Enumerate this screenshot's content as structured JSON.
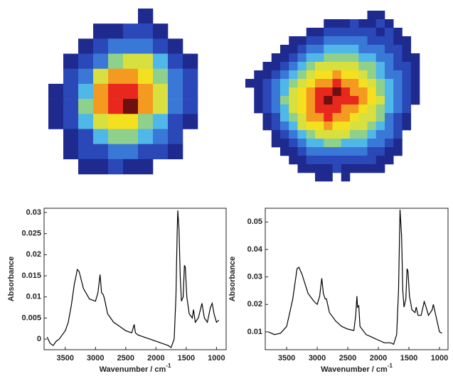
{
  "chart_data": [
    {
      "type": "heatmap",
      "colormap": [
        "#1f2a8f",
        "#2a48b8",
        "#3a78d8",
        "#4fb8e8",
        "#8fd08a",
        "#d8e040",
        "#f5e020",
        "#f49a20",
        "#e8281e",
        "#6e1010"
      ],
      "values": [
        [
          null,
          null,
          null,
          null,
          null,
          null,
          1,
          null,
          null,
          null
        ],
        [
          null,
          null,
          null,
          1,
          1,
          2,
          2,
          1,
          null,
          null
        ],
        [
          null,
          null,
          1,
          2,
          3,
          3,
          3,
          2,
          1,
          null
        ],
        [
          null,
          1,
          2,
          3,
          5,
          6,
          6,
          4,
          2,
          1
        ],
        [
          null,
          2,
          3,
          6,
          8,
          8,
          7,
          5,
          3,
          2
        ],
        [
          1,
          2,
          4,
          8,
          9,
          9,
          8,
          6,
          3,
          2
        ],
        [
          1,
          2,
          5,
          8,
          9,
          10,
          8,
          6,
          3,
          2
        ],
        [
          1,
          2,
          4,
          6,
          7,
          7,
          5,
          4,
          2,
          1
        ],
        [
          null,
          1,
          2,
          4,
          5,
          5,
          4,
          3,
          2,
          null
        ],
        [
          null,
          1,
          2,
          2,
          3,
          3,
          2,
          2,
          1,
          null
        ],
        [
          null,
          null,
          1,
          1,
          2,
          1,
          1,
          null,
          null,
          null
        ]
      ]
    },
    {
      "type": "heatmap",
      "colormap": [
        "#1f2a8f",
        "#2a48b8",
        "#3a78d8",
        "#4fb8e8",
        "#8fd08a",
        "#d8e040",
        "#f5e020",
        "#f49a20",
        "#e8281e",
        "#6e1010"
      ],
      "values": [
        [
          null,
          null,
          null,
          null,
          null,
          null,
          null,
          null,
          null,
          null,
          null,
          null,
          null,
          null,
          1,
          1,
          null,
          null,
          null,
          null
        ],
        [
          null,
          null,
          null,
          null,
          null,
          null,
          null,
          null,
          null,
          1,
          1,
          1,
          2,
          1,
          1,
          2,
          1,
          null,
          null,
          null
        ],
        [
          null,
          null,
          null,
          null,
          null,
          null,
          null,
          1,
          1,
          2,
          2,
          2,
          2,
          2,
          2,
          1,
          2,
          1,
          null,
          null
        ],
        [
          null,
          null,
          null,
          null,
          null,
          1,
          1,
          2,
          2,
          3,
          3,
          3,
          3,
          3,
          2,
          2,
          2,
          1,
          1,
          null
        ],
        [
          null,
          null,
          null,
          null,
          1,
          1,
          2,
          3,
          3,
          4,
          4,
          4,
          4,
          3,
          3,
          3,
          2,
          2,
          1,
          null
        ],
        [
          null,
          null,
          null,
          1,
          1,
          2,
          3,
          4,
          4,
          5,
          5,
          5,
          5,
          4,
          4,
          3,
          3,
          2,
          1,
          1
        ],
        [
          null,
          null,
          1,
          1,
          2,
          3,
          4,
          5,
          6,
          6,
          6,
          6,
          6,
          5,
          5,
          4,
          3,
          2,
          2,
          1
        ],
        [
          null,
          1,
          1,
          2,
          3,
          4,
          5,
          6,
          7,
          7,
          8,
          7,
          7,
          6,
          5,
          4,
          3,
          3,
          2,
          1
        ],
        [
          1,
          1,
          2,
          3,
          4,
          5,
          6,
          7,
          8,
          8,
          9,
          8,
          8,
          7,
          6,
          5,
          4,
          3,
          2,
          1
        ],
        [
          null,
          1,
          2,
          3,
          4,
          6,
          7,
          8,
          9,
          9,
          10,
          9,
          8,
          8,
          7,
          5,
          4,
          3,
          2,
          1
        ],
        [
          null,
          1,
          2,
          3,
          5,
          6,
          7,
          8,
          9,
          10,
          9,
          9,
          9,
          8,
          7,
          6,
          4,
          3,
          2,
          1
        ],
        [
          null,
          1,
          2,
          3,
          4,
          6,
          7,
          8,
          9,
          9,
          9,
          8,
          8,
          7,
          6,
          5,
          4,
          3,
          2,
          null
        ],
        [
          null,
          null,
          1,
          2,
          4,
          5,
          6,
          8,
          8,
          9,
          8,
          8,
          7,
          6,
          6,
          5,
          3,
          2,
          1,
          null
        ],
        [
          null,
          null,
          1,
          2,
          3,
          4,
          6,
          7,
          7,
          8,
          7,
          7,
          6,
          6,
          5,
          4,
          3,
          2,
          1,
          null
        ],
        [
          null,
          null,
          null,
          1,
          2,
          3,
          4,
          5,
          6,
          6,
          6,
          6,
          5,
          5,
          4,
          3,
          3,
          2,
          null,
          null
        ],
        [
          null,
          null,
          null,
          1,
          1,
          2,
          3,
          4,
          4,
          5,
          5,
          4,
          4,
          4,
          3,
          3,
          2,
          1,
          null,
          null
        ],
        [
          null,
          null,
          null,
          null,
          1,
          1,
          2,
          3,
          3,
          3,
          3,
          3,
          3,
          3,
          2,
          2,
          1,
          1,
          null,
          null
        ],
        [
          null,
          null,
          null,
          null,
          null,
          1,
          1,
          2,
          2,
          2,
          2,
          2,
          2,
          2,
          2,
          1,
          1,
          null,
          null,
          null
        ],
        [
          null,
          null,
          null,
          null,
          null,
          null,
          1,
          1,
          1,
          1,
          2,
          1,
          1,
          1,
          1,
          1,
          null,
          null,
          null,
          null
        ],
        [
          null,
          null,
          null,
          null,
          null,
          null,
          null,
          null,
          1,
          1,
          null,
          1,
          null,
          null,
          null,
          null,
          null,
          null,
          null,
          null
        ]
      ]
    },
    {
      "type": "line",
      "color": "#000000",
      "x_label": "Wavenumber / cm",
      "x_label_superscript": "-1",
      "y_label": "Absorbance",
      "xlim": [
        3850,
        840
      ],
      "xticks": [
        3500,
        3000,
        2500,
        2000,
        1500,
        1000
      ],
      "ylim": [
        -0.0025,
        0.031
      ],
      "yticks": [
        0,
        0.005,
        0.01,
        0.015,
        0.02,
        0.025,
        0.03
      ],
      "x": [
        3800,
        3750,
        3700,
        3650,
        3600,
        3550,
        3500,
        3450,
        3400,
        3350,
        3300,
        3270,
        3200,
        3100,
        3000,
        2960,
        2925,
        2900,
        2870,
        2850,
        2800,
        2700,
        2600,
        2500,
        2400,
        2360,
        2340,
        2300,
        2200,
        2100,
        2000,
        1900,
        1800,
        1750,
        1700,
        1670,
        1650,
        1640,
        1620,
        1600,
        1580,
        1550,
        1530,
        1515,
        1490,
        1450,
        1400,
        1380,
        1350,
        1300,
        1240,
        1200,
        1150,
        1100,
        1070,
        1040,
        1000,
        960
      ],
      "values": [
        0.0005,
        -0.001,
        -0.0015,
        -0.0005,
        0,
        0.001,
        0.002,
        0.004,
        0.008,
        0.013,
        0.0165,
        0.016,
        0.012,
        0.0095,
        0.009,
        0.011,
        0.0153,
        0.011,
        0.0105,
        0.0095,
        0.006,
        0.004,
        0.003,
        0.002,
        0.0015,
        0.0035,
        0.0015,
        0.001,
        0.0005,
        0,
        -0.0005,
        -0.001,
        -0.0015,
        -0.002,
        0,
        0.01,
        0.025,
        0.0305,
        0.026,
        0.015,
        0.009,
        0.01,
        0.0175,
        0.017,
        0.01,
        0.006,
        0.005,
        0.007,
        0.004,
        0.005,
        0.0085,
        0.005,
        0.004,
        0.0075,
        0.0085,
        0.006,
        0.004,
        0.0045
      ]
    },
    {
      "type": "line",
      "color": "#000000",
      "x_label": "Wavenumber / cm",
      "x_label_superscript": "-1",
      "y_label": "Absorbance",
      "xlim": [
        3850,
        860
      ],
      "xticks": [
        3500,
        3000,
        2500,
        2000,
        1500,
        1000
      ],
      "ylim": [
        0.0035,
        0.055
      ],
      "yticks": [
        0.01,
        0.02,
        0.03,
        0.04,
        0.05
      ],
      "x": [
        3800,
        3700,
        3600,
        3500,
        3400,
        3330,
        3300,
        3250,
        3150,
        3050,
        3000,
        2960,
        2925,
        2900,
        2870,
        2850,
        2800,
        2700,
        2600,
        2500,
        2400,
        2370,
        2350,
        2340,
        2320,
        2300,
        2200,
        2100,
        2000,
        1900,
        1800,
        1750,
        1700,
        1670,
        1645,
        1620,
        1600,
        1580,
        1550,
        1530,
        1515,
        1490,
        1450,
        1400,
        1380,
        1350,
        1300,
        1250,
        1220,
        1180,
        1120,
        1100,
        1080,
        1040,
        1000,
        960
      ],
      "values": [
        0.01,
        0.009,
        0.0095,
        0.012,
        0.022,
        0.033,
        0.0335,
        0.031,
        0.024,
        0.021,
        0.02,
        0.023,
        0.0295,
        0.024,
        0.022,
        0.022,
        0.017,
        0.014,
        0.012,
        0.011,
        0.0105,
        0.016,
        0.023,
        0.019,
        0.0195,
        0.012,
        0.009,
        0.008,
        0.007,
        0.006,
        0.006,
        0.0055,
        0.009,
        0.025,
        0.0545,
        0.045,
        0.025,
        0.019,
        0.022,
        0.033,
        0.032,
        0.023,
        0.018,
        0.017,
        0.019,
        0.016,
        0.016,
        0.021,
        0.019,
        0.016,
        0.018,
        0.02,
        0.018,
        0.014,
        0.01,
        0.0095
      ]
    }
  ]
}
